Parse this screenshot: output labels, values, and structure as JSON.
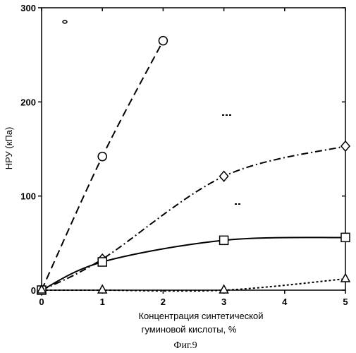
{
  "chart_data": {
    "type": "line",
    "xlabel_line1": "Концентрация синтетической",
    "xlabel_line2": "гуминовой кислоты,  %",
    "ylabel": "НРУ (кПа)",
    "caption": "Фиг.9",
    "xlim": [
      0,
      5
    ],
    "ylim": [
      0,
      300
    ],
    "x_ticks": [
      "0",
      "1",
      "2",
      "3",
      "4",
      "5"
    ],
    "y_ticks": [
      "0",
      "100",
      "200",
      "300"
    ],
    "grid": false,
    "series": [
      {
        "marker": "circle",
        "line_style": "dashed",
        "x": [
          0,
          1,
          2
        ],
        "y": [
          0,
          142,
          265
        ]
      },
      {
        "marker": "diamond",
        "line_style": "dash-dot",
        "x": [
          0,
          1,
          3,
          5
        ],
        "y": [
          0,
          33,
          121,
          153
        ]
      },
      {
        "marker": "square",
        "line_style": "solid",
        "x": [
          0,
          1,
          3,
          5
        ],
        "y": [
          0,
          30,
          53,
          56
        ]
      },
      {
        "marker": "triangle",
        "line_style": "dotted",
        "x": [
          0,
          1,
          3,
          5
        ],
        "y": [
          0,
          0,
          0,
          12
        ]
      }
    ]
  }
}
